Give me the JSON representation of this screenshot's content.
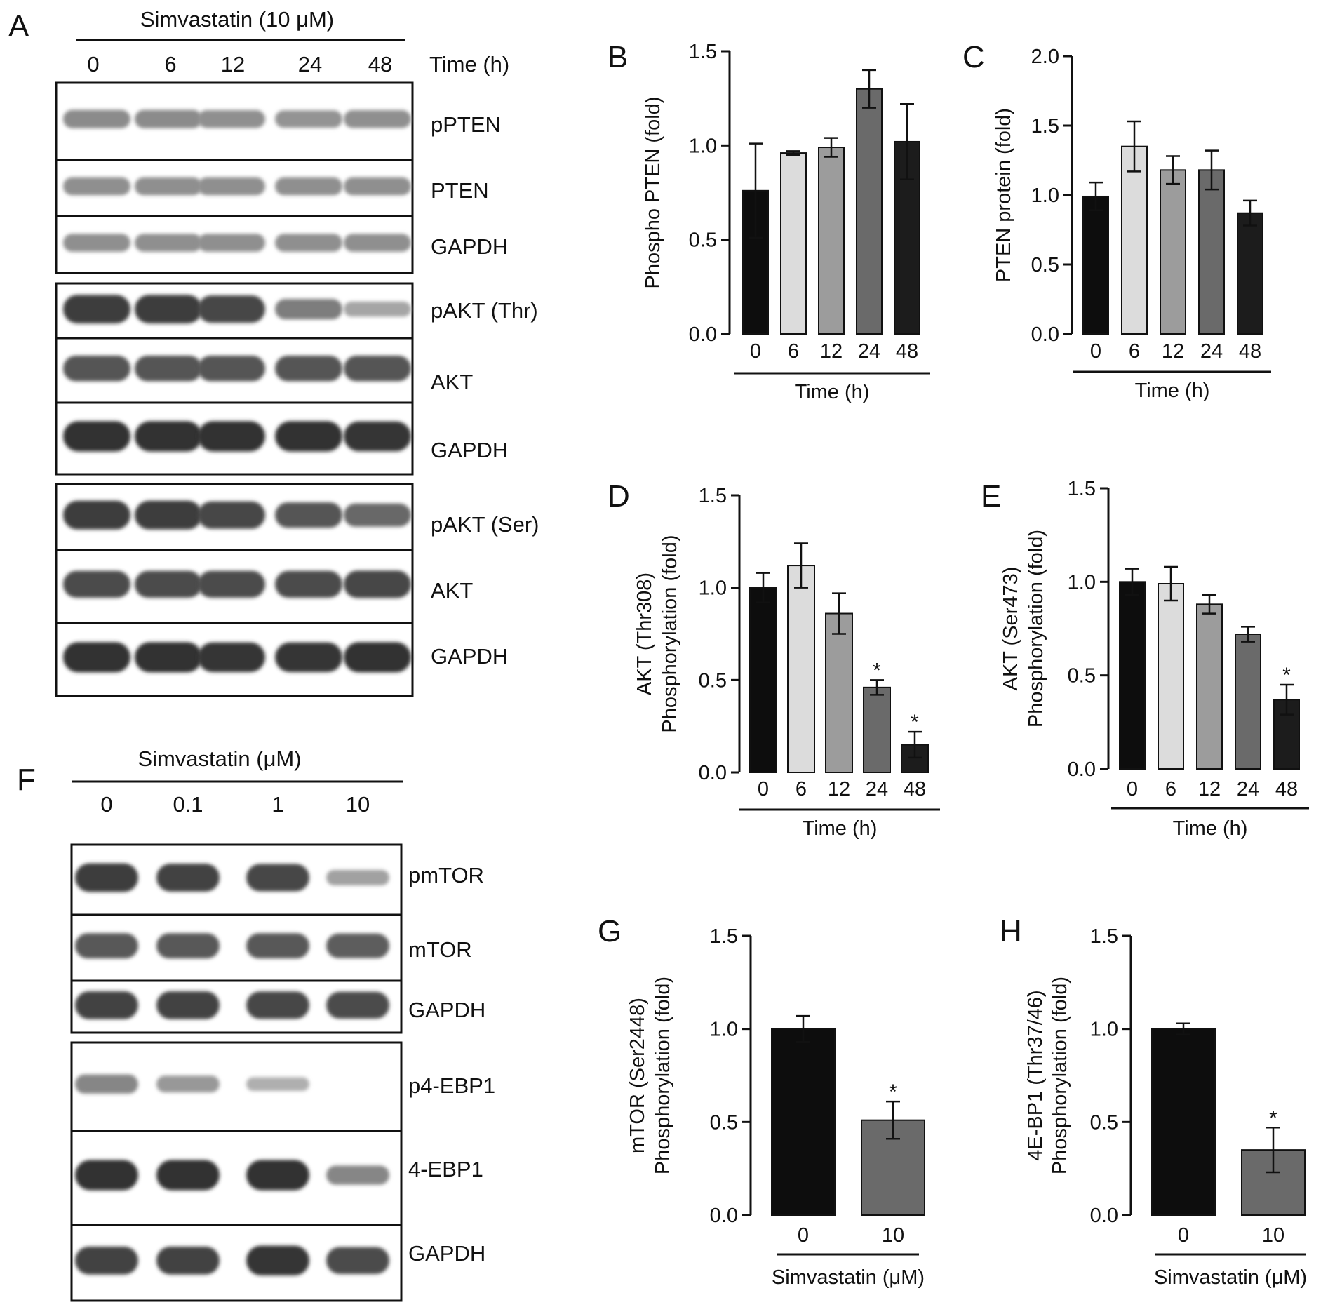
{
  "panel_letters": [
    "A",
    "B",
    "C",
    "D",
    "E",
    "F",
    "G",
    "H"
  ],
  "blot_a": {
    "treatment": "Simvastatin (10 μM)",
    "lanes": [
      "0",
      "6",
      "12",
      "24",
      "48"
    ],
    "lane_axis": "Time (h)",
    "bands": [
      "pPTEN",
      "PTEN",
      "GAPDH",
      "pAKT (Thr)",
      "AKT",
      "GAPDH",
      "pAKT (Ser)",
      "AKT",
      "GAPDH"
    ],
    "intensity": [
      [
        0.42,
        0.42,
        0.4,
        0.38,
        0.4
      ],
      [
        0.4,
        0.4,
        0.4,
        0.4,
        0.4
      ],
      [
        0.4,
        0.4,
        0.4,
        0.4,
        0.4
      ],
      [
        0.85,
        0.85,
        0.8,
        0.5,
        0.28
      ],
      [
        0.72,
        0.72,
        0.72,
        0.72,
        0.72
      ],
      [
        0.92,
        0.92,
        0.92,
        0.92,
        0.9
      ],
      [
        0.86,
        0.86,
        0.8,
        0.72,
        0.62
      ],
      [
        0.78,
        0.78,
        0.78,
        0.78,
        0.8
      ],
      [
        0.92,
        0.92,
        0.9,
        0.9,
        0.92
      ]
    ]
  },
  "blot_f": {
    "treatment": "Simvastatin (μM)",
    "lanes": [
      "0",
      "0.1",
      "1",
      "10"
    ],
    "bands": [
      "pmTOR",
      "mTOR",
      "GAPDH",
      "p4-EBP1",
      "4-EBP1",
      "GAPDH"
    ],
    "intensity": [
      [
        0.85,
        0.82,
        0.8,
        0.3
      ],
      [
        0.7,
        0.7,
        0.7,
        0.68
      ],
      [
        0.82,
        0.82,
        0.8,
        0.78
      ],
      [
        0.45,
        0.35,
        0.22,
        0.0
      ],
      [
        0.92,
        0.92,
        0.92,
        0.45
      ],
      [
        0.82,
        0.82,
        0.9,
        0.78
      ]
    ]
  },
  "chart_data": [
    {
      "panel": "B",
      "type": "bar",
      "categories": [
        "0",
        "6",
        "12",
        "24",
        "48"
      ],
      "values": [
        0.76,
        0.96,
        0.99,
        1.3,
        1.02
      ],
      "errors": [
        0.25,
        0.01,
        0.05,
        0.1,
        0.2
      ],
      "ylim": [
        0,
        1.5
      ],
      "yticks": [
        "0.0",
        "0.5",
        "1.0",
        "1.5"
      ],
      "ylabel": [
        "Phospho PTEN (fold)"
      ],
      "xlabel": "Time (h)",
      "colors": [
        "#0d0d0d",
        "#dcdcdc",
        "#9c9c9c",
        "#6a6a6a",
        "#1c1c1c"
      ],
      "significant": [
        false,
        false,
        false,
        false,
        false
      ]
    },
    {
      "panel": "C",
      "type": "bar",
      "categories": [
        "0",
        "6",
        "12",
        "24",
        "48"
      ],
      "values": [
        0.99,
        1.35,
        1.18,
        1.18,
        0.87
      ],
      "errors": [
        0.1,
        0.18,
        0.1,
        0.14,
        0.09
      ],
      "ylim": [
        0,
        2.0
      ],
      "yticks": [
        "0.0",
        "0.5",
        "1.0",
        "1.5",
        "2.0"
      ],
      "ylabel": [
        "PTEN protein  (fold)"
      ],
      "xlabel": "Time (h)",
      "colors": [
        "#0d0d0d",
        "#dcdcdc",
        "#9c9c9c",
        "#6a6a6a",
        "#1c1c1c"
      ],
      "significant": [
        false,
        false,
        false,
        false,
        false
      ]
    },
    {
      "panel": "D",
      "type": "bar",
      "categories": [
        "0",
        "6",
        "12",
        "24",
        "48"
      ],
      "values": [
        1.0,
        1.12,
        0.86,
        0.46,
        0.15
      ],
      "errors": [
        0.08,
        0.12,
        0.11,
        0.04,
        0.07
      ],
      "ylim": [
        0,
        1.5
      ],
      "yticks": [
        "0.0",
        "0.5",
        "1.0",
        "1.5"
      ],
      "ylabel": [
        "AKT (Thr308)",
        "Phosphorylation (fold)"
      ],
      "xlabel": "Time (h)",
      "colors": [
        "#0d0d0d",
        "#dcdcdc",
        "#9c9c9c",
        "#6a6a6a",
        "#1c1c1c"
      ],
      "significant": [
        false,
        false,
        false,
        true,
        true
      ],
      "star": "*"
    },
    {
      "panel": "E",
      "type": "bar",
      "categories": [
        "0",
        "6",
        "12",
        "24",
        "48"
      ],
      "values": [
        1.0,
        0.99,
        0.88,
        0.72,
        0.37
      ],
      "errors": [
        0.07,
        0.09,
        0.05,
        0.04,
        0.08
      ],
      "ylim": [
        0,
        1.5
      ],
      "yticks": [
        "0.0",
        "0.5",
        "1.0",
        "1.5"
      ],
      "ylabel": [
        "AKT (Ser473)",
        "Phosphorylation (fold)"
      ],
      "xlabel": "Time (h)",
      "colors": [
        "#0d0d0d",
        "#dcdcdc",
        "#9c9c9c",
        "#6a6a6a",
        "#1c1c1c"
      ],
      "significant": [
        false,
        false,
        false,
        false,
        true
      ],
      "star": "*"
    },
    {
      "panel": "G",
      "type": "bar",
      "categories": [
        "0",
        "10"
      ],
      "values": [
        1.0,
        0.51
      ],
      "errors": [
        0.07,
        0.1
      ],
      "ylim": [
        0,
        1.5
      ],
      "yticks": [
        "0.0",
        "0.5",
        "1.0",
        "1.5"
      ],
      "ylabel": [
        "mTOR (Ser2448)",
        "Phosphorylation (fold)"
      ],
      "xlabel": "Simvastatin (μM)",
      "colors": [
        "#0d0d0d",
        "#6a6a6a"
      ],
      "significant": [
        false,
        true
      ],
      "star": "*"
    },
    {
      "panel": "H",
      "type": "bar",
      "categories": [
        "0",
        "10"
      ],
      "values": [
        1.0,
        0.35
      ],
      "errors": [
        0.03,
        0.12
      ],
      "ylim": [
        0,
        1.5
      ],
      "yticks": [
        "0.0",
        "0.5",
        "1.0",
        "1.5"
      ],
      "ylabel": [
        "4E-BP1 (Thr37/46)",
        "Phosphorylation (fold)"
      ],
      "xlabel": "Simvastatin (μM)",
      "colors": [
        "#0d0d0d",
        "#6a6a6a"
      ],
      "significant": [
        false,
        true
      ],
      "star": "*"
    }
  ]
}
